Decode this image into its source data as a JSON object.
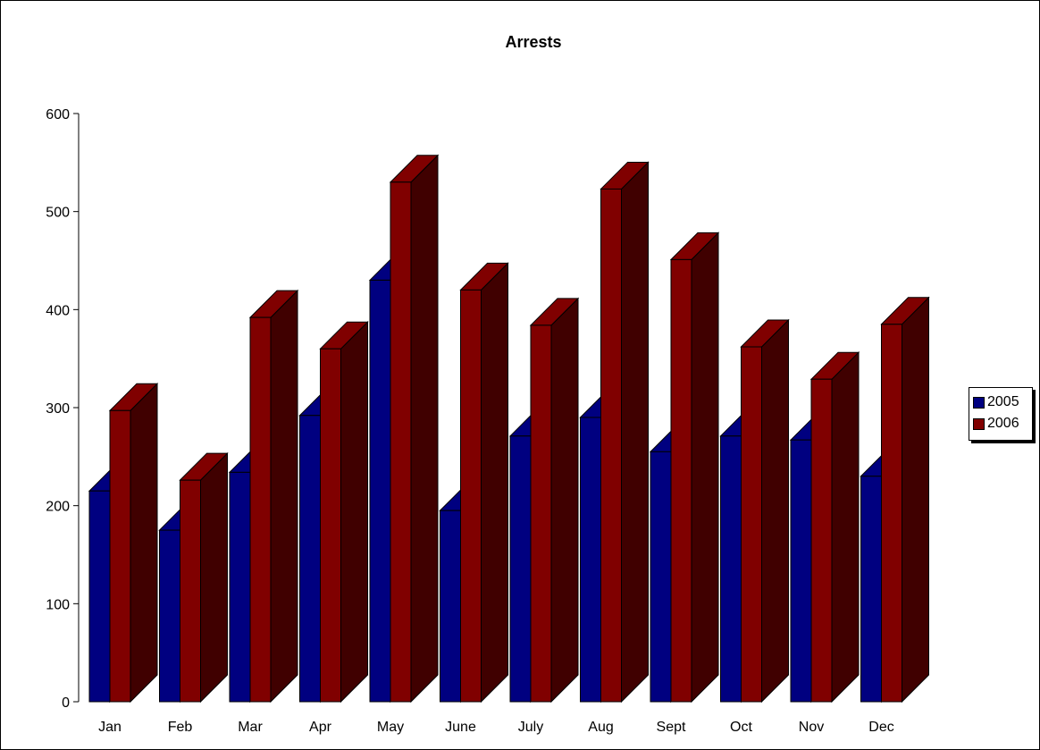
{
  "chart_data": {
    "type": "bar",
    "title": "Arrests",
    "xlabel": "",
    "ylabel": "",
    "categories": [
      "Jan",
      "Feb",
      "Mar",
      "Apr",
      "May",
      "June",
      "July",
      "Aug",
      "Sept",
      "Oct",
      "Nov",
      "Dec"
    ],
    "series": [
      {
        "name": "2005",
        "color": "#000080",
        "values": [
          215,
          175,
          234,
          292,
          430,
          195,
          271,
          290,
          255,
          271,
          267,
          230
        ]
      },
      {
        "name": "2006",
        "color": "#800000",
        "values": [
          297,
          226,
          392,
          360,
          530,
          420,
          384,
          523,
          451,
          362,
          329,
          385
        ]
      }
    ],
    "ylim": [
      0,
      600
    ],
    "yticks": [
      "0",
      "100",
      "200",
      "300",
      "400",
      "500",
      "600"
    ],
    "grid": false,
    "legend_position": "right",
    "three_d": true
  }
}
